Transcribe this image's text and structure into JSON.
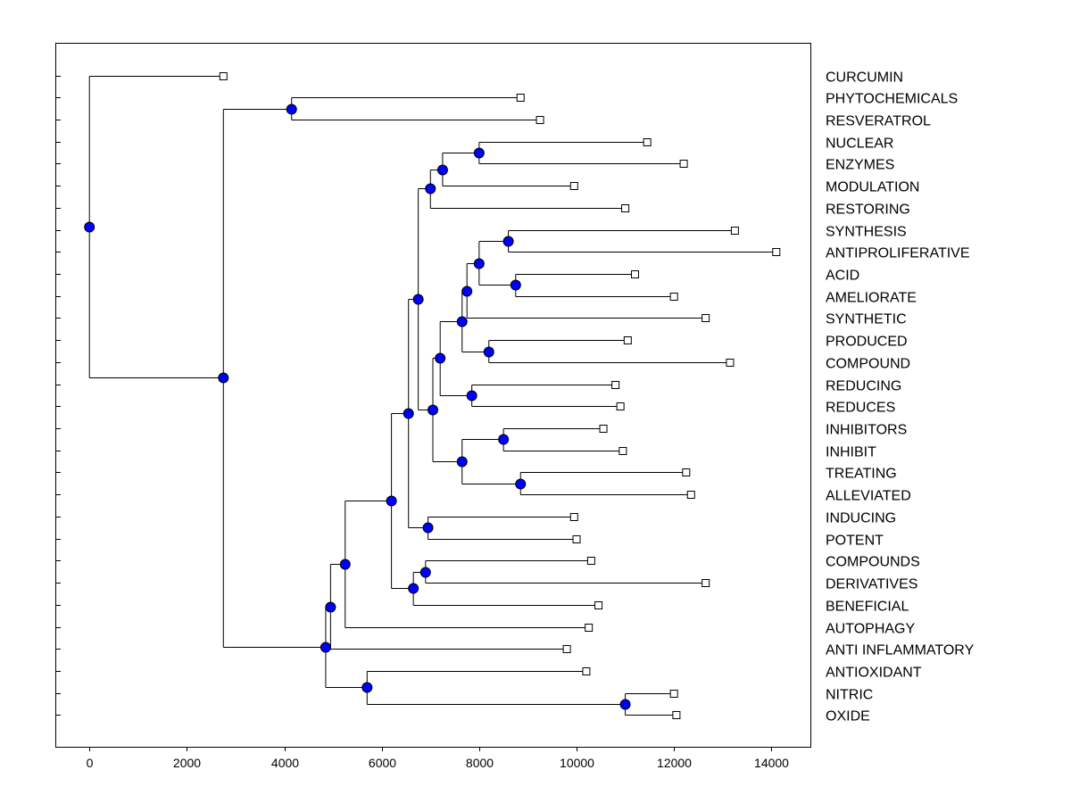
{
  "chart_data": {
    "type": "dendrogram",
    "orientation": "horizontal",
    "xlim": [
      -700,
      14800
    ],
    "x_ticks": [
      0,
      2000,
      4000,
      6000,
      8000,
      10000,
      12000,
      14000
    ],
    "x_tick_labels": [
      "0",
      "2000",
      "4000",
      "6000",
      "8000",
      "10000",
      "12000",
      "14000"
    ],
    "colors": {
      "node_fill": "#0000ff",
      "line": "#000000",
      "leaf_fill": "#ffffff"
    },
    "leaves": [
      {
        "label": "CURCUMIN",
        "x": 2750
      },
      {
        "label": "PHYTOCHEMICALS",
        "x": 8850
      },
      {
        "label": "RESVERATROL",
        "x": 9250
      },
      {
        "label": "NUCLEAR",
        "x": 11450
      },
      {
        "label": "ENZYMES",
        "x": 12200
      },
      {
        "label": "MODULATION",
        "x": 9950
      },
      {
        "label": "RESTORING",
        "x": 11000
      },
      {
        "label": "SYNTHESIS",
        "x": 13250
      },
      {
        "label": "ANTIPROLIFERATIVE",
        "x": 14100
      },
      {
        "label": "ACID",
        "x": 11200
      },
      {
        "label": "AMELIORATE",
        "x": 12000
      },
      {
        "label": "SYNTHETIC",
        "x": 12650
      },
      {
        "label": "PRODUCED",
        "x": 11050
      },
      {
        "label": "COMPOUND",
        "x": 13150
      },
      {
        "label": "REDUCING",
        "x": 10800
      },
      {
        "label": "REDUCES",
        "x": 10900
      },
      {
        "label": "INHIBITORS",
        "x": 10550
      },
      {
        "label": "INHIBIT",
        "x": 10950
      },
      {
        "label": "TREATING",
        "x": 12250
      },
      {
        "label": "ALLEVIATED",
        "x": 12350
      },
      {
        "label": "INDUCING",
        "x": 9950
      },
      {
        "label": "POTENT",
        "x": 10000
      },
      {
        "label": "COMPOUNDS",
        "x": 10300
      },
      {
        "label": "DERIVATIVES",
        "x": 12650
      },
      {
        "label": "BENEFICIAL",
        "x": 10450
      },
      {
        "label": "AUTOPHAGY",
        "x": 10250
      },
      {
        "label": "ANTI INFLAMMATORY",
        "x": 9800
      },
      {
        "label": "ANTIOXIDANT",
        "x": 10200
      },
      {
        "label": "NITRIC",
        "x": 12000
      },
      {
        "label": "OXIDE",
        "x": 12050
      }
    ],
    "nodes": [
      {
        "id": "n_ps",
        "x": 4150,
        "children": [
          "L1",
          "L2"
        ]
      },
      {
        "id": "n_ne",
        "x": 8000,
        "children": [
          "L3",
          "L4"
        ]
      },
      {
        "id": "n_nem",
        "x": 7250,
        "children": [
          "n_ne",
          "L5"
        ]
      },
      {
        "id": "n_nemr",
        "x": 7000,
        "children": [
          "n_nem",
          "L6"
        ]
      },
      {
        "id": "n_sa",
        "x": 8600,
        "children": [
          "L7",
          "L8"
        ]
      },
      {
        "id": "n_aa",
        "x": 8750,
        "children": [
          "L9",
          "L10"
        ]
      },
      {
        "id": "n_saaa",
        "x": 8000,
        "children": [
          "n_sa",
          "n_aa"
        ]
      },
      {
        "id": "n_g1",
        "x": 7750,
        "children": [
          "n_saaa",
          "L11"
        ]
      },
      {
        "id": "n_pc",
        "x": 8200,
        "children": [
          "L12",
          "L13"
        ]
      },
      {
        "id": "n_g2",
        "x": 7650,
        "children": [
          "n_g1",
          "n_pc"
        ]
      },
      {
        "id": "n_rr",
        "x": 7850,
        "children": [
          "L14",
          "L15"
        ]
      },
      {
        "id": "n_g3",
        "x": 7200,
        "children": [
          "n_g2",
          "n_rr"
        ]
      },
      {
        "id": "n_ii",
        "x": 8500,
        "children": [
          "L16",
          "L17"
        ]
      },
      {
        "id": "n_ta",
        "x": 8850,
        "children": [
          "L18",
          "L19"
        ]
      },
      {
        "id": "n_iita",
        "x": 7650,
        "children": [
          "n_ii",
          "n_ta"
        ]
      },
      {
        "id": "n_g4",
        "x": 7050,
        "children": [
          "n_g3",
          "n_iita"
        ]
      },
      {
        "id": "n_g5",
        "x": 6750,
        "children": [
          "n_nemr",
          "n_g4"
        ]
      },
      {
        "id": "n_ip",
        "x": 6950,
        "children": [
          "L20",
          "L21"
        ]
      },
      {
        "id": "n_g6",
        "x": 6550,
        "children": [
          "n_g5",
          "n_ip"
        ]
      },
      {
        "id": "n_cd",
        "x": 6900,
        "children": [
          "L22",
          "L23"
        ]
      },
      {
        "id": "n_cdb",
        "x": 6650,
        "children": [
          "n_cd",
          "L24"
        ]
      },
      {
        "id": "n_g7",
        "x": 6200,
        "children": [
          "n_g6",
          "n_cdb"
        ]
      },
      {
        "id": "n_g8",
        "x": 5250,
        "children": [
          "n_g7",
          "L25"
        ]
      },
      {
        "id": "n_g9",
        "x": 4950,
        "children": [
          "n_g8",
          "L26"
        ]
      },
      {
        "id": "n_no",
        "x": 11000,
        "children": [
          "L28",
          "L29"
        ]
      },
      {
        "id": "n_ano",
        "x": 5700,
        "children": [
          "L27",
          "n_no"
        ]
      },
      {
        "id": "n_g10",
        "x": 4850,
        "children": [
          "n_g9",
          "n_ano"
        ]
      },
      {
        "id": "n_g11",
        "x": 2750,
        "children": [
          "n_ps",
          "n_g10"
        ]
      },
      {
        "id": "n_root",
        "x": 0,
        "children": [
          "L0",
          "n_g11"
        ]
      }
    ]
  }
}
